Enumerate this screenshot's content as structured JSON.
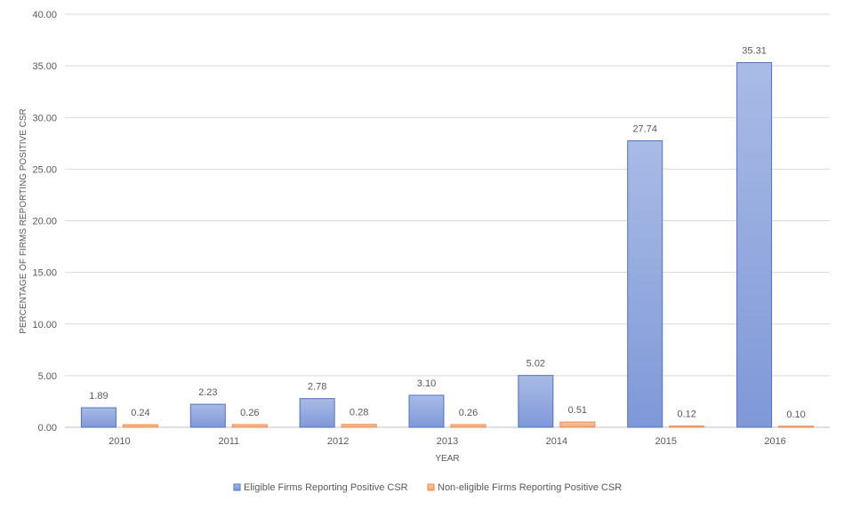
{
  "chart_data": {
    "type": "bar",
    "title": "",
    "xlabel": "YEAR",
    "ylabel": "PERCENTAGE OF FIRMS REPORTING POSITIVE CSR",
    "categories": [
      "2010",
      "2011",
      "2012",
      "2013",
      "2014",
      "2015",
      "2016"
    ],
    "series": [
      {
        "name": "Eligible Firms Reporting Positive CSR",
        "values": [
          1.89,
          2.23,
          2.78,
          3.1,
          5.02,
          27.74,
          35.31
        ],
        "labels": [
          "1.89",
          "2.23",
          "2.78",
          "3.10",
          "5.02",
          "27.74",
          "35.31"
        ],
        "color": "#8ea6dd"
      },
      {
        "name": "Non-eligible Firms Reporting Positive CSR",
        "values": [
          0.24,
          0.26,
          0.28,
          0.26,
          0.51,
          0.12,
          0.1
        ],
        "labels": [
          "0.24",
          "0.26",
          "0.28",
          "0.26",
          "0.51",
          "0.12",
          "0.10"
        ],
        "color": "#f4b183"
      }
    ],
    "ylim": [
      0,
      40
    ],
    "yticks": [
      "0.00",
      "5.00",
      "10.00",
      "15.00",
      "20.00",
      "25.00",
      "30.00",
      "35.00",
      "40.00"
    ],
    "grid": true,
    "legend_position": "bottom"
  }
}
